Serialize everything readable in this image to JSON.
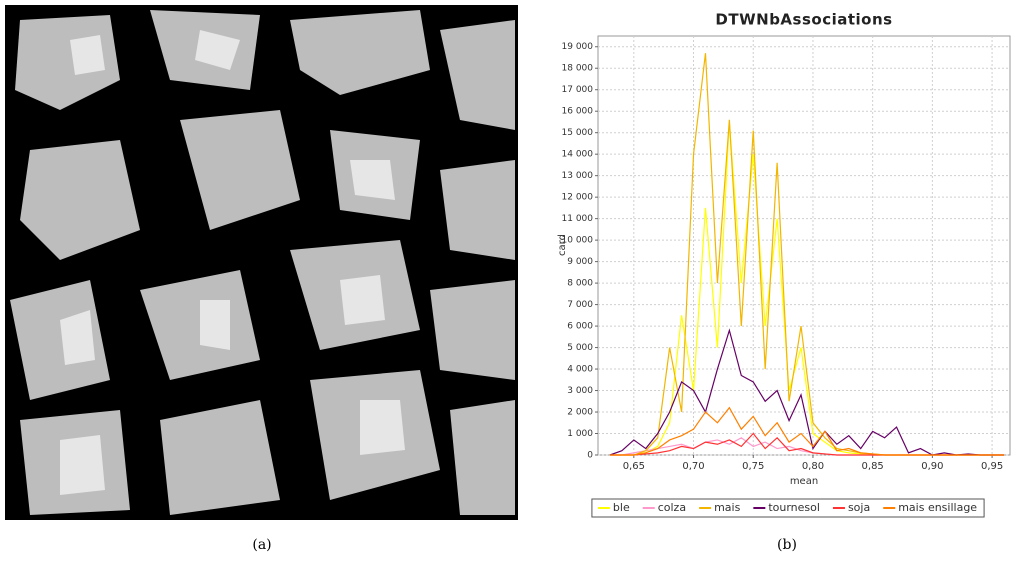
{
  "captions": [
    "(a)",
    "(b)"
  ],
  "chart_data": {
    "type": "line",
    "title": "DTWNbAssociations",
    "x_label": "mean",
    "y_label": "card",
    "x": [
      0.63,
      0.64,
      0.65,
      0.66,
      0.67,
      0.68,
      0.69,
      0.7,
      0.71,
      0.72,
      0.73,
      0.74,
      0.75,
      0.76,
      0.77,
      0.78,
      0.79,
      0.8,
      0.81,
      0.82,
      0.83,
      0.84,
      0.85,
      0.86,
      0.87,
      0.88,
      0.89,
      0.9,
      0.91,
      0.92,
      0.93,
      0.94,
      0.95,
      0.96
    ],
    "series": [
      {
        "name": "ble",
        "color": "#ffff00",
        "values": [
          0,
          0,
          0,
          100,
          400,
          1500,
          6500,
          3000,
          11500,
          5000,
          15500,
          8000,
          14000,
          6000,
          11000,
          3000,
          5000,
          1000,
          600,
          200,
          100,
          50,
          0,
          0,
          0,
          0,
          0,
          0,
          0,
          0,
          0,
          0,
          0,
          0
        ]
      },
      {
        "name": "colza",
        "color": "#ff99cc",
        "values": [
          0,
          0,
          100,
          200,
          300,
          400,
          500,
          300,
          600,
          700,
          500,
          800,
          400,
          600,
          300,
          400,
          200,
          100,
          50,
          0,
          0,
          0,
          0,
          0,
          0,
          0,
          0,
          0,
          0,
          0,
          0,
          0,
          0,
          0
        ]
      },
      {
        "name": "mais",
        "color": "#f2b600",
        "values": [
          0,
          0,
          0,
          200,
          800,
          5000,
          2000,
          14000,
          18700,
          8000,
          15600,
          6000,
          15100,
          4000,
          13600,
          2500,
          6000,
          1500,
          800,
          300,
          200,
          100,
          50,
          0,
          0,
          0,
          0,
          0,
          0,
          0,
          0,
          0,
          0,
          0
        ]
      },
      {
        "name": "tournesol",
        "color": "#660066",
        "values": [
          0,
          200,
          700,
          300,
          1000,
          2000,
          3400,
          3000,
          2000,
          4000,
          5800,
          3700,
          3400,
          2500,
          3000,
          1600,
          2800,
          300,
          1100,
          500,
          900,
          300,
          1100,
          800,
          1300,
          100,
          300,
          0,
          100,
          0,
          50,
          0,
          0,
          0
        ]
      },
      {
        "name": "soja",
        "color": "#ff3333",
        "values": [
          0,
          0,
          0,
          50,
          100,
          200,
          400,
          300,
          600,
          500,
          700,
          400,
          1000,
          300,
          800,
          200,
          300,
          100,
          50,
          0,
          0,
          0,
          0,
          0,
          0,
          0,
          0,
          0,
          0,
          0,
          0,
          0,
          0,
          0
        ]
      },
      {
        "name": "mais ensillage",
        "color": "#ff8000",
        "values": [
          0,
          0,
          0,
          100,
          300,
          700,
          900,
          1200,
          2000,
          1500,
          2200,
          1200,
          1800,
          900,
          1500,
          600,
          1000,
          400,
          1100,
          200,
          300,
          100,
          50,
          0,
          0,
          0,
          0,
          0,
          0,
          0,
          0,
          0,
          0,
          0
        ]
      }
    ],
    "xlim": [
      0.62,
      0.965
    ],
    "xticks": [
      {
        "value": 0.65,
        "label": "0,65"
      },
      {
        "value": 0.7,
        "label": "0,70"
      },
      {
        "value": 0.75,
        "label": "0,75"
      },
      {
        "value": 0.8,
        "label": "0,80"
      },
      {
        "value": 0.85,
        "label": "0,85"
      },
      {
        "value": 0.9,
        "label": "0,90"
      },
      {
        "value": 0.95,
        "label": "0,95"
      }
    ],
    "ylim": [
      0,
      19500
    ],
    "yticks": [
      0,
      {
        "value": 1000,
        "label": "1 000"
      },
      {
        "value": 2000,
        "label": "2 000"
      },
      {
        "value": 3000,
        "label": "3 000"
      },
      {
        "value": 4000,
        "label": "4 000"
      },
      {
        "value": 5000,
        "label": "5 000"
      },
      {
        "value": 6000,
        "label": "6 000"
      },
      {
        "value": 7000,
        "label": "7 000"
      },
      {
        "value": 8000,
        "label": "8 000"
      },
      {
        "value": 9000,
        "label": "9 000"
      },
      {
        "value": 10000,
        "label": "10 000"
      },
      {
        "value": 11000,
        "label": "11 000"
      },
      {
        "value": 12000,
        "label": "12 000"
      },
      {
        "value": 13000,
        "label": "13 000"
      },
      {
        "value": 14000,
        "label": "14 000"
      },
      {
        "value": 15000,
        "label": "15 000"
      },
      {
        "value": 16000,
        "label": "16 000"
      },
      {
        "value": 17000,
        "label": "17 000"
      },
      {
        "value": 18000,
        "label": "18 000"
      },
      {
        "value": 19000,
        "label": "19 000"
      }
    ],
    "grid": true,
    "legend": "bottom"
  }
}
